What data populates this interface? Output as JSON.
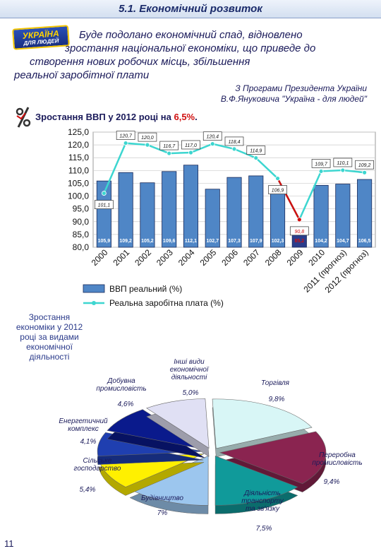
{
  "header": {
    "title": "5.1. Економічний розвиток"
  },
  "logo": {
    "line1": "УКРАЇНА",
    "line2": "ДЛЯ ЛЮДЕЙ"
  },
  "intro": {
    "lines": [
      "Буде подолано економічний спад, відновлено",
      "зростання національної економіки, що приведе до",
      "створення нових робочих місць, збільшення",
      "реальної заробітної плати"
    ]
  },
  "source": {
    "line1": "З Програми Президента України",
    "line2": "В.Ф.Януковича \"Україна - для людей\""
  },
  "gdp_heading": {
    "text": "Зростання ВВП у 2012 році на ",
    "value": "6,5%",
    "suffix": "."
  },
  "sectors_title": [
    "Зростання",
    "економіки у 2012",
    "році за видами",
    "економічної",
    "діяльності"
  ],
  "page_number": "11",
  "colors": {
    "bar": "#4f86c6",
    "bar_highlight": "#2a3d8c",
    "line": "#3dd6d0",
    "accent": "#d01010"
  },
  "chart_data": [
    {
      "type": "bar",
      "categories": [
        "2000",
        "2001",
        "2002",
        "2003",
        "2004",
        "2005",
        "2006",
        "2007",
        "2008",
        "2009",
        "2010",
        "2011 (прогноз)",
        "2012 (прогноз)"
      ],
      "ylim": [
        80,
        125
      ],
      "yticks": [
        "80,0",
        "85,0",
        "90,0",
        "95,0",
        "100,0",
        "105,0",
        "110,0",
        "115,0",
        "120,0",
        "125,0"
      ],
      "series": [
        {
          "name": "ВВП реальний (%)",
          "kind": "bar",
          "values": [
            105.9,
            109.2,
            105.2,
            109.6,
            112.1,
            102.7,
            107.3,
            107.9,
            102.3,
            85.2,
            104.2,
            104.7,
            106.5
          ],
          "labels": [
            "105,9",
            "109,2",
            "105,2",
            "109,6",
            "112,1",
            "102,7",
            "107,3",
            "107,9",
            "102,3",
            "85,2",
            "104,2",
            "104,7",
            "106,5"
          ]
        },
        {
          "name": "Реальна заробітна плата (%)",
          "kind": "line",
          "values": [
            101.1,
            120.7,
            120.0,
            116.7,
            117.0,
            120.4,
            118.4,
            114.9,
            106.9,
            90.8,
            109.7,
            110.1,
            109.2
          ],
          "labels": [
            "101,1",
            "120,7",
            "120,0",
            "116,7",
            "117,0",
            "120,4",
            "118,4",
            "114,9",
            "106,9",
            "90,8",
            "109,7",
            "110,1",
            "109,2"
          ]
        }
      ]
    },
    {
      "type": "pie",
      "categories": [
        "Торгівля",
        "Переробна промисловість",
        "Діяльність транспорту та зв'язку",
        "Будівництво",
        "Сільське господарство",
        "Енергетичний комплекс",
        "Добувна промисловість",
        "Інші види економічної діяльності"
      ],
      "values": [
        9.8,
        9.4,
        7.5,
        7.0,
        5.4,
        4.1,
        4.6,
        5.0
      ],
      "labels": [
        "9,8%",
        "9,4%",
        "7,5%",
        "7%",
        "5,4%",
        "4,1%",
        "4,6%",
        "5,0%"
      ],
      "slice_colors": [
        "#d8f6f6",
        "#8a2450",
        "#109a9a",
        "#9cc6ee",
        "#fff000",
        "#1f3fb0",
        "#0a1a8c",
        "#e0e0f4"
      ]
    }
  ]
}
